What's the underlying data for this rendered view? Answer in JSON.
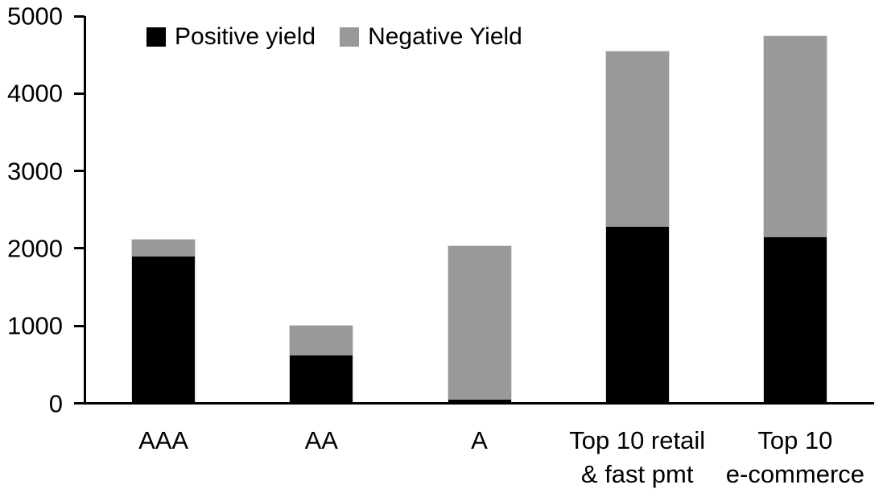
{
  "chart_data": {
    "type": "bar",
    "stacked": true,
    "categories": [
      "AAA",
      "AA",
      "A",
      "Top 10 retail\n& fast pmt",
      "Top 10\ne-commerce"
    ],
    "series": [
      {
        "name": "Positive yield",
        "color": "#000000",
        "values": [
          1900,
          620,
          50,
          2280,
          2140
        ]
      },
      {
        "name": "Negative Yield",
        "color": "#999999",
        "values": [
          210,
          380,
          1980,
          2260,
          2600
        ]
      }
    ],
    "ylim": [
      0,
      5000
    ],
    "yticks": [
      0,
      1000,
      2000,
      3000,
      4000,
      5000
    ],
    "ytick_labels": [
      "0",
      "1000",
      "2000",
      "3000",
      "4000",
      "5000"
    ],
    "grid": false,
    "legend_position": "top",
    "axis_color": "#000000",
    "background_color": "#ffffff"
  }
}
